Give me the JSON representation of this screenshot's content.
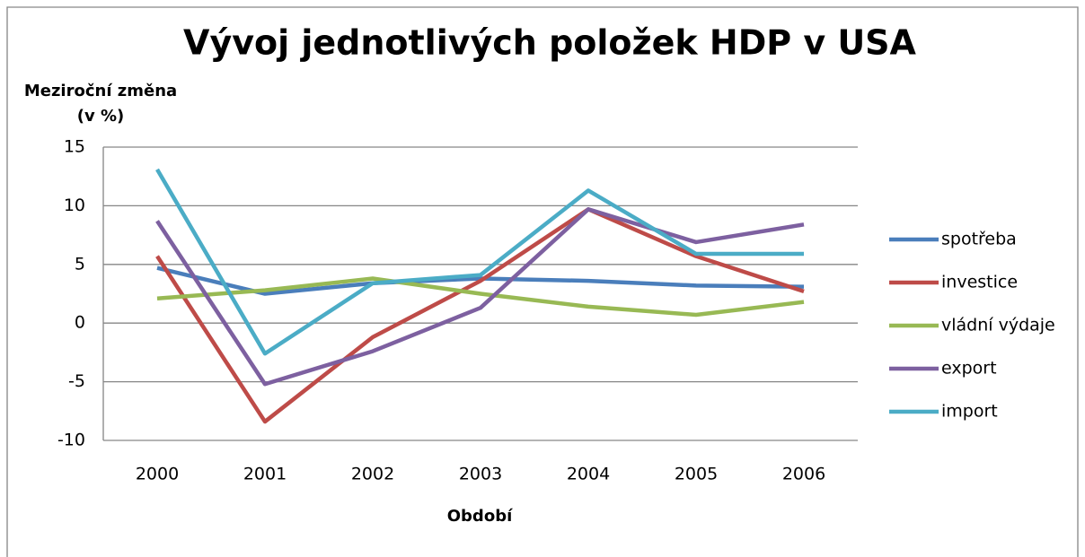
{
  "chart_data": {
    "type": "line",
    "title": "Vývoj jednotlivých položek HDP v USA",
    "y_label": [
      "Meziroční změna",
      "(v %)"
    ],
    "x_label": "Období",
    "categories": [
      "2000",
      "2001",
      "2002",
      "2003",
      "2004",
      "2005",
      "2006"
    ],
    "series": [
      {
        "name": "spotřeba",
        "color": "#4a7ebb",
        "values": [
          4.7,
          2.5,
          3.4,
          3.8,
          3.6,
          3.2,
          3.1
        ]
      },
      {
        "name": "investice",
        "color": "#be4b48",
        "values": [
          5.7,
          -8.4,
          -1.2,
          3.6,
          9.7,
          5.7,
          2.7
        ]
      },
      {
        "name": "vládní výdaje",
        "color": "#98b954",
        "values": [
          2.1,
          2.8,
          3.8,
          2.5,
          1.4,
          0.7,
          1.8
        ]
      },
      {
        "name": "export",
        "color": "#7d60a0",
        "values": [
          8.7,
          -5.2,
          -2.4,
          1.3,
          9.7,
          6.9,
          8.4
        ]
      },
      {
        "name": "import",
        "color": "#4bacc6",
        "values": [
          13.1,
          -2.6,
          3.4,
          4.1,
          11.3,
          5.9,
          5.9
        ]
      }
    ],
    "ylim": [
      -10,
      15
    ],
    "yticks": [
      -10,
      -5,
      0,
      5,
      10,
      15
    ],
    "grid": true,
    "legend": "right"
  }
}
